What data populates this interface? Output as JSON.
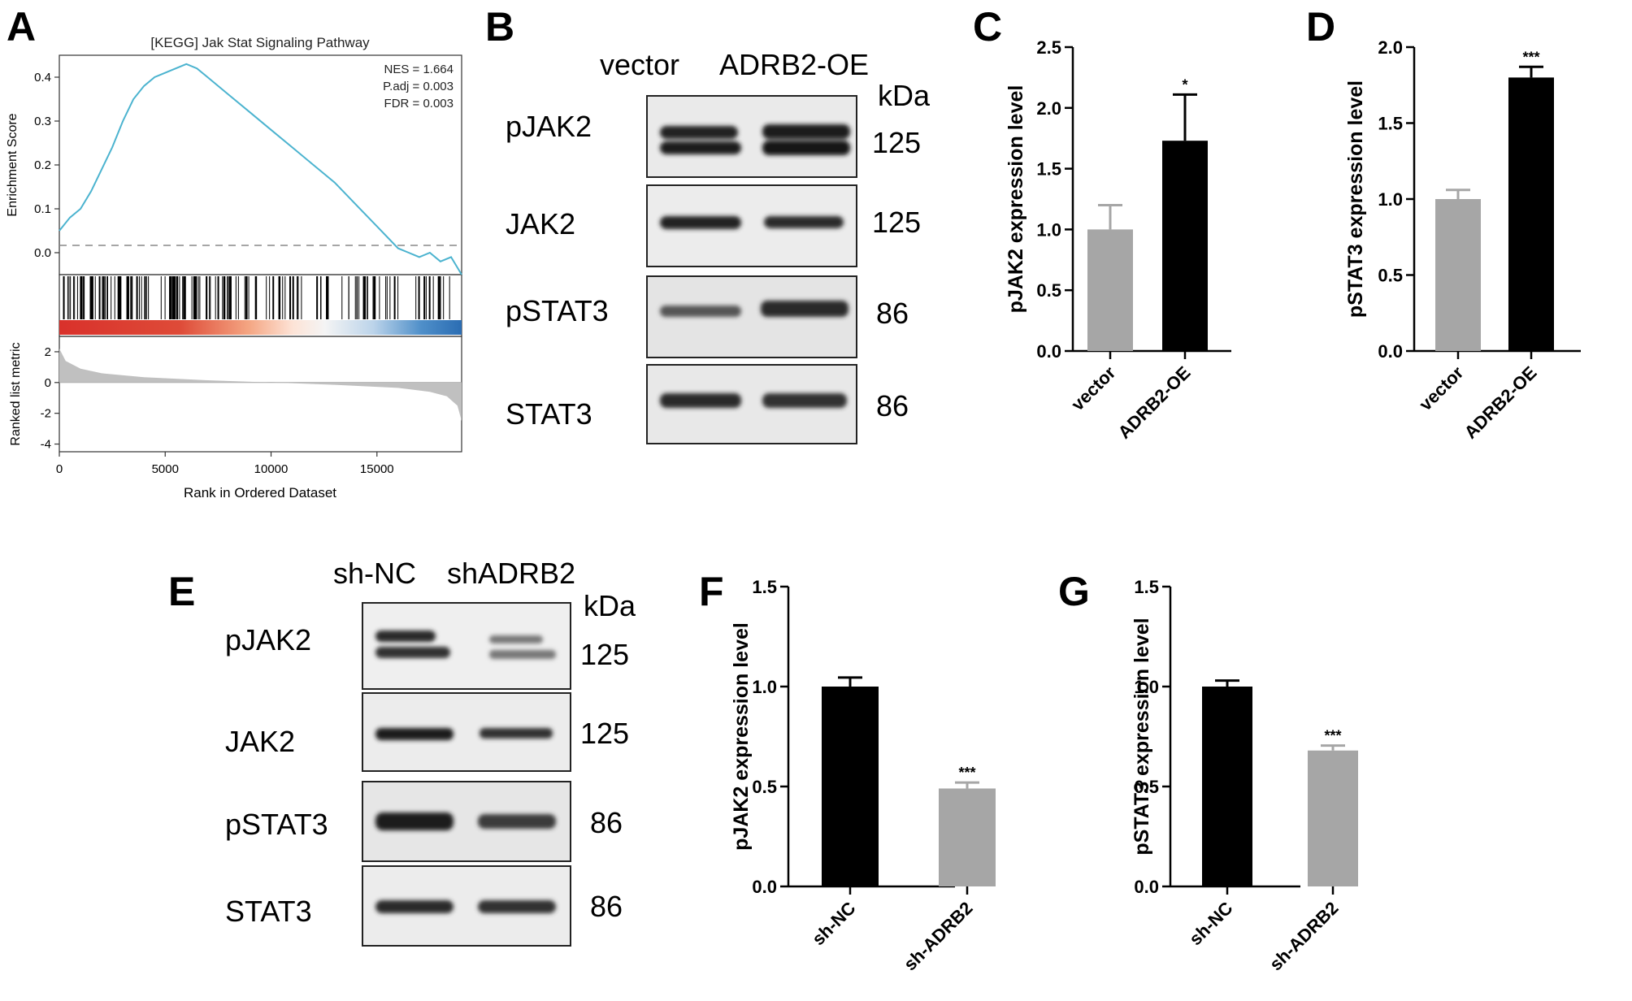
{
  "panels": {
    "A": {
      "letter": "A",
      "title": "[KEGG] Jak Stat Signaling Pathway",
      "stats": [
        "NES = 1.664",
        "P.adj = 0.003",
        "FDR = 0.003"
      ],
      "ylabel_es": "Enrichment Score",
      "ylabel_metric": "Ranked list metric",
      "xlabel": "Rank in Ordered Dataset"
    },
    "B": {
      "letter": "B",
      "lanes": [
        "vector",
        "ADRB2-OE"
      ],
      "unit": "kDa",
      "rows": [
        {
          "label": "pJAK2",
          "kda": "125"
        },
        {
          "label": "JAK2",
          "kda": "125"
        },
        {
          "label": "pSTAT3",
          "kda": "86"
        },
        {
          "label": "STAT3",
          "kda": "86"
        }
      ]
    },
    "E": {
      "letter": "E",
      "lanes": [
        "sh-NC",
        "shADRB2"
      ],
      "unit": "kDa",
      "rows": [
        {
          "label": "pJAK2",
          "kda": "125"
        },
        {
          "label": "JAK2",
          "kda": "125"
        },
        {
          "label": "pSTAT3",
          "kda": "86"
        },
        {
          "label": "STAT3",
          "kda": "86"
        }
      ]
    }
  },
  "chart_data": [
    {
      "id": "A",
      "type": "line",
      "title": "[KEGG] Jak Stat Signaling Pathway",
      "xlabel": "Rank in Ordered Dataset",
      "ylabel": "Enrichment Score",
      "xlim": [
        0,
        19000
      ],
      "ylim": [
        -0.05,
        0.45
      ],
      "xticks": [
        0,
        5000,
        10000,
        15000
      ],
      "yticks": [
        0.0,
        0.1,
        0.2,
        0.3,
        0.4
      ],
      "x": [
        0,
        500,
        1000,
        1500,
        2000,
        2500,
        3000,
        3500,
        4000,
        4500,
        5000,
        5500,
        6000,
        6500,
        7000,
        8000,
        9000,
        10000,
        11000,
        12000,
        13000,
        14000,
        15000,
        16000,
        16500,
        17000,
        17500,
        18000,
        18500,
        19000
      ],
      "values": [
        0.05,
        0.08,
        0.1,
        0.14,
        0.19,
        0.24,
        0.3,
        0.35,
        0.38,
        0.4,
        0.41,
        0.42,
        0.43,
        0.42,
        0.4,
        0.36,
        0.32,
        0.28,
        0.24,
        0.2,
        0.16,
        0.11,
        0.06,
        0.01,
        0.0,
        -0.01,
        0.0,
        -0.02,
        -0.01,
        -0.05
      ],
      "color": "#4bb3cf",
      "metric": {
        "ylabel": "Ranked list metric",
        "ylim": [
          -4.5,
          3
        ],
        "yticks": [
          2,
          0,
          -2,
          -4
        ],
        "x": [
          0,
          300,
          1000,
          2000,
          4000,
          7000,
          10000,
          13000,
          16000,
          17500,
          18300,
          18800,
          19000
        ],
        "values": [
          2.2,
          1.4,
          0.9,
          0.6,
          0.35,
          0.15,
          0.0,
          -0.15,
          -0.35,
          -0.6,
          -0.9,
          -1.5,
          -2.5
        ],
        "color": "#c0c0c0"
      },
      "annotations": [
        "NES = 1.664",
        "P.adj = 0.003",
        "FDR = 0.003"
      ]
    },
    {
      "id": "C",
      "type": "bar",
      "categories": [
        "vector",
        "ADRB2-OE"
      ],
      "values": [
        1.0,
        1.73
      ],
      "errors": [
        0.2,
        0.38
      ],
      "ylabel": "pJAK2 expression level",
      "ylim": [
        0,
        2.5
      ],
      "yticks": [
        0.0,
        0.5,
        1.0,
        1.5,
        2.0,
        2.5
      ],
      "colors": [
        "#a6a6a6",
        "#000000"
      ],
      "annotations": [
        "",
        "*"
      ]
    },
    {
      "id": "D",
      "type": "bar",
      "categories": [
        "vector",
        "ADRB2-OE"
      ],
      "values": [
        1.0,
        1.8
      ],
      "errors": [
        0.06,
        0.07
      ],
      "ylabel": "pSTAT3 expression level",
      "ylim": [
        0,
        2.0
      ],
      "yticks": [
        0.0,
        0.5,
        1.0,
        1.5,
        2.0
      ],
      "colors": [
        "#a6a6a6",
        "#000000"
      ],
      "annotations": [
        "",
        "***"
      ]
    },
    {
      "id": "F",
      "type": "bar",
      "categories": [
        "sh-NC",
        "sh-ADRB2"
      ],
      "values": [
        1.0,
        0.49
      ],
      "errors": [
        0.045,
        0.03
      ],
      "ylabel": "pJAK2 expression level",
      "ylim": [
        0,
        1.5
      ],
      "yticks": [
        0.0,
        0.5,
        1.0,
        1.5
      ],
      "colors": [
        "#000000",
        "#a6a6a6"
      ],
      "annotations": [
        "",
        "***"
      ]
    },
    {
      "id": "G",
      "type": "bar",
      "categories": [
        "sh-NC",
        "sh-ADRB2"
      ],
      "values": [
        1.0,
        0.68
      ],
      "errors": [
        0.03,
        0.025
      ],
      "ylabel": "pSTAT3 expression level",
      "ylim": [
        0,
        1.5
      ],
      "yticks": [
        0.0,
        0.5,
        1.0,
        1.5
      ],
      "colors": [
        "#000000",
        "#a6a6a6"
      ],
      "annotations": [
        "",
        "***"
      ]
    }
  ]
}
